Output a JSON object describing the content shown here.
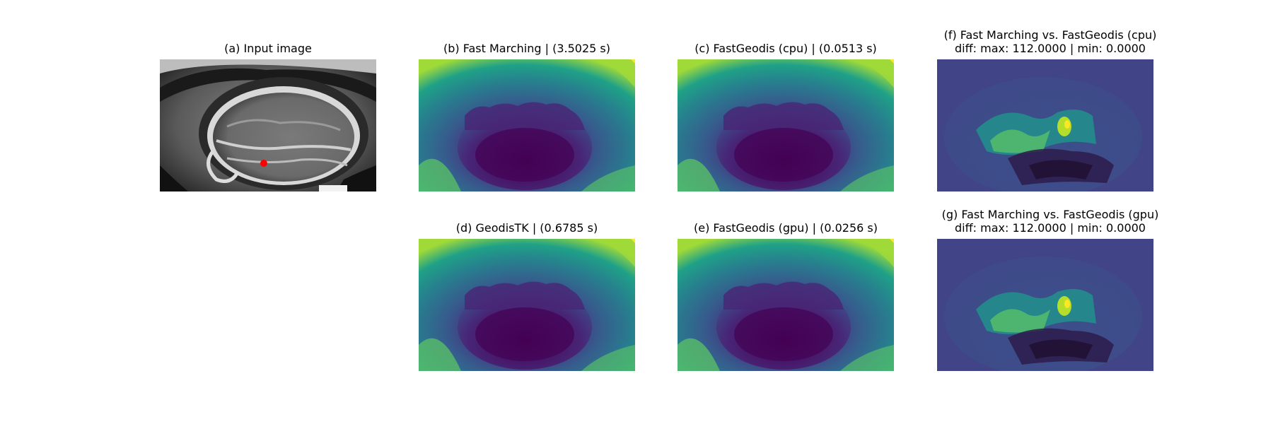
{
  "figure": {
    "panels": [
      {
        "id": "a",
        "title_lines": [
          "(a) Input image"
        ],
        "kind": "mri"
      },
      {
        "id": "b",
        "title_lines": [
          "(b) Fast Marching | (3.5025 s)"
        ],
        "kind": "geodesic"
      },
      {
        "id": "c",
        "title_lines": [
          "(c) FastGeodis (cpu) | (0.0513 s)"
        ],
        "kind": "geodesic"
      },
      {
        "id": "f",
        "title_lines": [
          "(f) Fast Marching vs. FastGeodis (cpu)",
          "diff: max: 112.0000 | min: 0.0000"
        ],
        "kind": "diff"
      },
      {
        "id": "d",
        "title_lines": [
          "(d) GeodisTK | (0.6785 s)"
        ],
        "kind": "geodesic"
      },
      {
        "id": "e",
        "title_lines": [
          "(e) FastGeodis (gpu) | (0.0256 s)"
        ],
        "kind": "geodesic"
      },
      {
        "id": "g",
        "title_lines": [
          "(g) Fast Marching vs. FastGeodis (gpu)",
          "diff: max: 112.0000 | min: 0.0000"
        ],
        "kind": "diff"
      }
    ],
    "colors": {
      "seed_point": "#ff0000",
      "colormap": "viridis",
      "viridis_dark": "#440154",
      "viridis_mid": "#2a788e",
      "viridis_green": "#5ec962",
      "viridis_yellow": "#fde725"
    }
  }
}
